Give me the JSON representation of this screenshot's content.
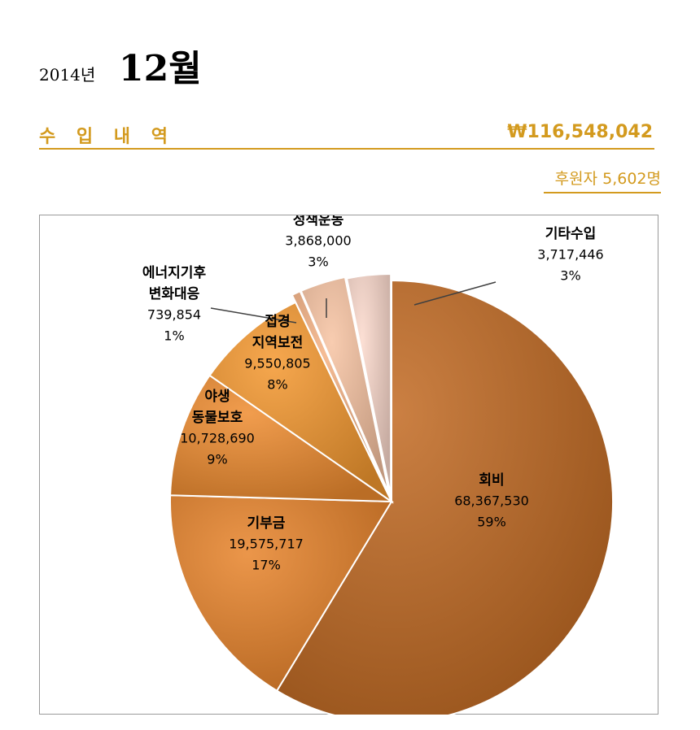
{
  "header": {
    "year": "2014년",
    "month": "12월"
  },
  "income": {
    "label": "수 입 내 역",
    "total": "₩116,548,042"
  },
  "sponsors": "후원자 5,602명",
  "colors": {
    "accent": "#d39a1e"
  },
  "chart_data": {
    "type": "pie",
    "title": "",
    "start_angle_deg": 0,
    "direction": "clockwise",
    "slices": [
      {
        "name": "회비",
        "value_label": "68,367,530",
        "percent_label": "59%",
        "value": 68367530,
        "color": "#c26a22"
      },
      {
        "name": "기부금",
        "value_label": "19,575,717",
        "percent_label": "17%",
        "value": 19575717,
        "color": "#e8832a"
      },
      {
        "name": "야생\n동물보호",
        "value_label": "10,728,690",
        "percent_label": "9%",
        "value": 10728690,
        "color": "#ef8c2f"
      },
      {
        "name": "접경\n지역보전",
        "value_label": "9,550,805",
        "percent_label": "8%",
        "value": 9550805,
        "color": "#f4982f"
      },
      {
        "name": "에너지기후\n변화대응",
        "value_label": "739,854",
        "percent_label": "1%",
        "value": 739854,
        "color": "#f4b184"
      },
      {
        "name": "정책운동",
        "value_label": "3,868,000",
        "percent_label": "3%",
        "value": 3868000,
        "color": "#f7c3a2"
      },
      {
        "name": "기타수입",
        "value_label": "3,717,446",
        "percent_label": "3%",
        "value": 3717446,
        "color": "#fbd9cc"
      }
    ]
  }
}
